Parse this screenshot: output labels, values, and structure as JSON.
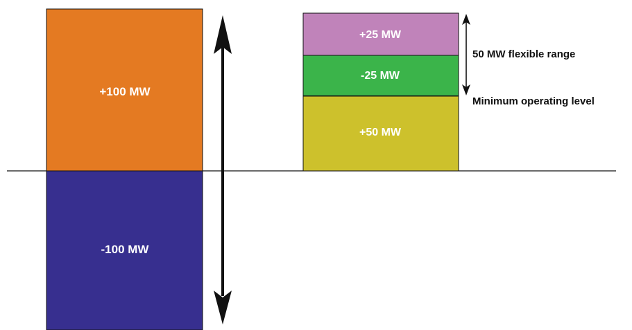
{
  "colors": {
    "orange": "#e47a22",
    "navy": "#372f8f",
    "purple": "#c083ba",
    "green": "#3bb44a",
    "olive": "#cdc12c",
    "stroke": "#111111",
    "text_light": "#ffffff",
    "text_dark": "#111111"
  },
  "left_column": {
    "upper_label": "+100 MW",
    "lower_label": "-100 MW"
  },
  "right_column": {
    "top_label": "+25 MW",
    "middle_label": "-25 MW",
    "bottom_label": "+50 MW"
  },
  "annotations": {
    "flexible_range": "50 MW flexible range",
    "minimum_level": "Minimum operating level"
  }
}
